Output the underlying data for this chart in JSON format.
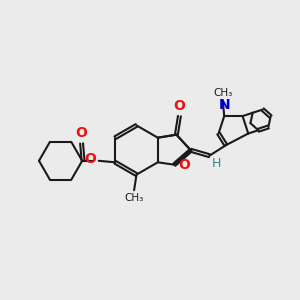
{
  "bg_color": "#ebebeb",
  "bond_color": "#1a1a1a",
  "o_color": "#ee1111",
  "n_color": "#0000cc",
  "h_color": "#2e8b8b",
  "lw": 1.5,
  "dg": 0.05,
  "xlim": [
    0,
    10
  ],
  "ylim": [
    0,
    10
  ]
}
